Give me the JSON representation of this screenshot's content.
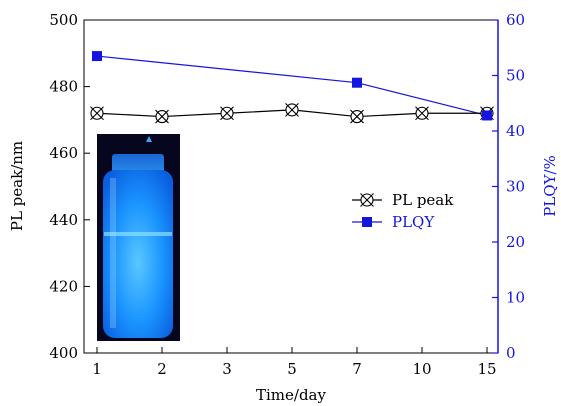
{
  "chart_data": {
    "type": "line",
    "categories": [
      "1",
      "2",
      "3",
      "5",
      "7",
      "10",
      "15"
    ],
    "xlabel": "Time/day",
    "ylabel_left": "PL peak/nm",
    "ylabel_right": "PLQY/%",
    "ylim_left": [
      400,
      500
    ],
    "ylim_right": [
      0,
      60
    ],
    "yticks_left": [
      400,
      420,
      440,
      460,
      480,
      500
    ],
    "yticks_right": [
      0,
      10,
      20,
      30,
      40,
      50,
      60
    ],
    "grid": false,
    "legend_position": "center-right",
    "series": [
      {
        "name": "PL peak",
        "axis": "left",
        "marker": "circle-x",
        "color": "#000000",
        "x": [
          "1",
          "2",
          "3",
          "5",
          "7",
          "10",
          "15"
        ],
        "values": [
          472,
          471,
          472,
          473,
          471,
          472,
          472
        ]
      },
      {
        "name": "PLQY",
        "axis": "right",
        "marker": "square",
        "color": "#1515e0",
        "x": [
          "1",
          "7",
          "15"
        ],
        "values": [
          53.5,
          48.7,
          42.8
        ]
      }
    ],
    "inset": {
      "description_icon": "photo-of-glowing-blue-vial",
      "colors": {
        "background": "#06061e",
        "glow": "#1a8cff"
      }
    }
  }
}
